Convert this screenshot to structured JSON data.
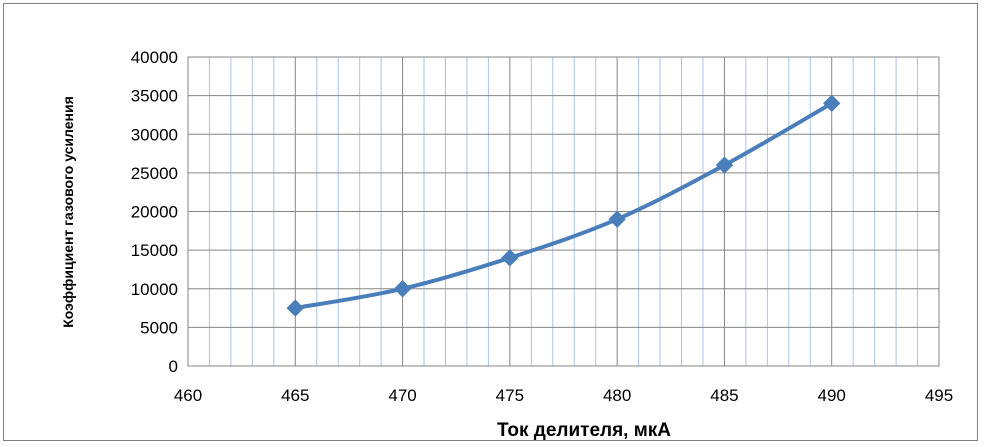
{
  "chart_data": {
    "type": "line",
    "title": "",
    "xlabel": "Ток делителя, мкА",
    "ylabel": "Коэффициент газового усиления",
    "xlim": [
      460,
      495
    ],
    "ylim": [
      0,
      40000
    ],
    "xticks": [
      "460",
      "465",
      "470",
      "475",
      "480",
      "485",
      "490",
      "495"
    ],
    "yticks": [
      "0",
      "5000",
      "10000",
      "15000",
      "20000",
      "25000",
      "30000",
      "35000",
      "40000"
    ],
    "grid": true,
    "legend": "none",
    "series": [
      {
        "x": [
          465,
          470,
          475,
          480,
          485,
          490
        ],
        "y": [
          7500,
          10000,
          14000,
          19000,
          26000,
          34000
        ],
        "color": "#4a7ebb",
        "marker": "diamond",
        "smooth": true
      }
    ]
  }
}
